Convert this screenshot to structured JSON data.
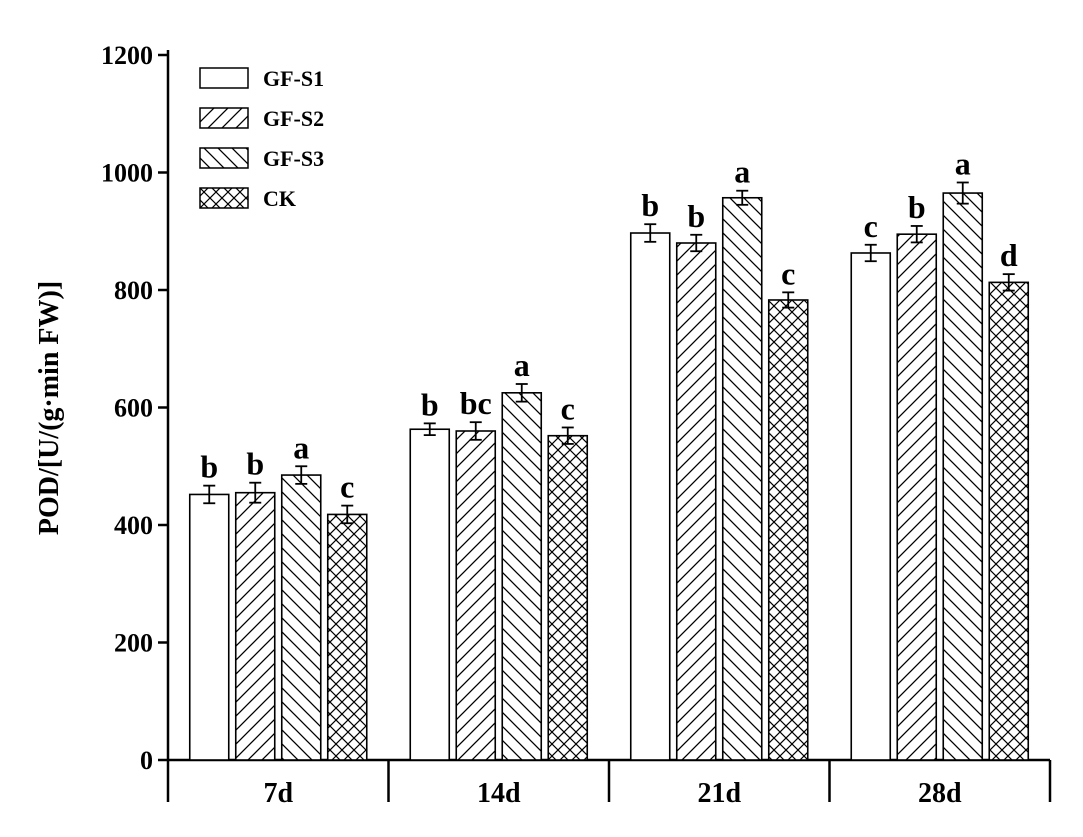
{
  "chart_data": {
    "type": "bar",
    "title": "",
    "xlabel": "",
    "ylabel": "POD/[U/(g·min FW)]",
    "ylim": [
      0,
      1200
    ],
    "yticks": [
      0,
      200,
      400,
      600,
      800,
      1000,
      1200
    ],
    "categories": [
      "7d",
      "14d",
      "21d",
      "28d"
    ],
    "legend_position": "top-left",
    "series": [
      {
        "name": "GF-S1",
        "pattern": "none",
        "values": [
          452,
          563,
          897,
          863
        ],
        "errors": [
          15,
          10,
          15,
          14
        ],
        "labels": [
          "b",
          "b",
          "b",
          "c"
        ]
      },
      {
        "name": "GF-S2",
        "pattern": "hatch-forward",
        "values": [
          455,
          560,
          880,
          895
        ],
        "errors": [
          17,
          15,
          14,
          14
        ],
        "labels": [
          "b",
          "bc",
          "b",
          "b"
        ]
      },
      {
        "name": "GF-S3",
        "pattern": "hatch-back",
        "values": [
          485,
          625,
          957,
          965
        ],
        "errors": [
          15,
          15,
          12,
          18
        ],
        "labels": [
          "a",
          "a",
          "a",
          "a"
        ]
      },
      {
        "name": "CK",
        "pattern": "crosshatch",
        "values": [
          418,
          552,
          783,
          813
        ],
        "errors": [
          15,
          14,
          13,
          14
        ],
        "labels": [
          "c",
          "c",
          "c",
          "d"
        ]
      }
    ]
  }
}
